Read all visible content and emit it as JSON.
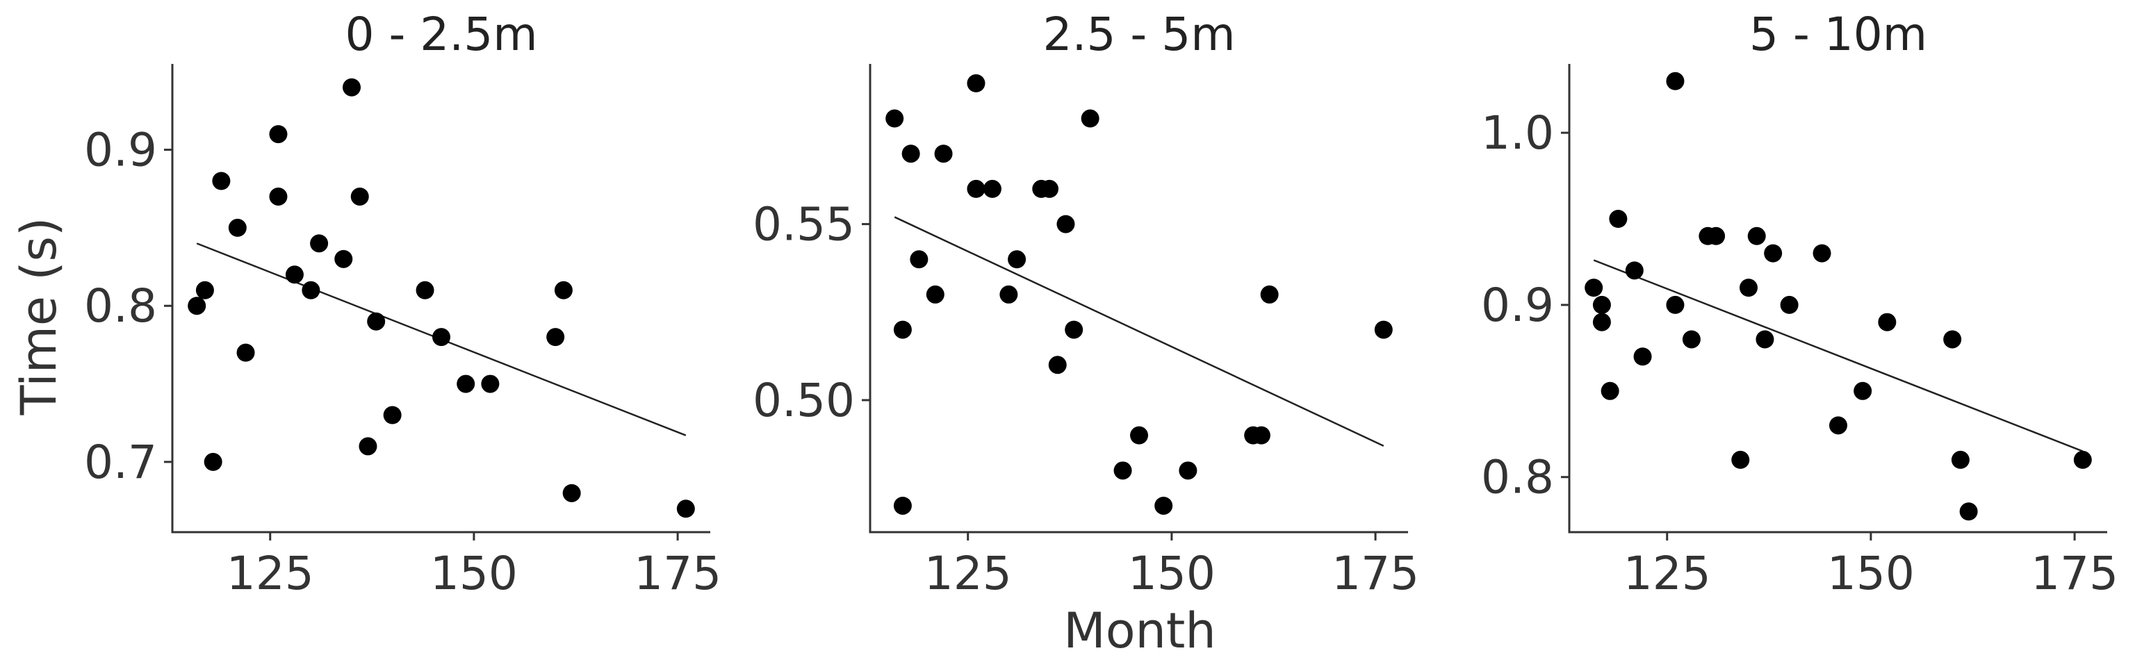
{
  "chart_data": {
    "type": "scatter",
    "xlabel": "Month",
    "ylabel": "Time (s)",
    "panels": [
      {
        "title": "0 - 2.5m",
        "xlim": [
          113,
          179
        ],
        "ylim": [
          0.655,
          0.955
        ],
        "xticks": [
          125,
          150,
          175
        ],
        "xtick_labels": [
          "125",
          "150",
          "175"
        ],
        "yticks": [
          0.7,
          0.8,
          0.9
        ],
        "ytick_labels": [
          "0.7",
          "0.8",
          "0.9"
        ],
        "points": [
          {
            "x": 116,
            "y": 0.8
          },
          {
            "x": 117,
            "y": 0.81
          },
          {
            "x": 118,
            "y": 0.7
          },
          {
            "x": 119,
            "y": 0.88
          },
          {
            "x": 121,
            "y": 0.85
          },
          {
            "x": 122,
            "y": 0.77
          },
          {
            "x": 126,
            "y": 0.91
          },
          {
            "x": 126,
            "y": 0.87
          },
          {
            "x": 128,
            "y": 0.82
          },
          {
            "x": 130,
            "y": 0.81
          },
          {
            "x": 131,
            "y": 0.84
          },
          {
            "x": 134,
            "y": 0.83
          },
          {
            "x": 135,
            "y": 0.94
          },
          {
            "x": 136,
            "y": 0.87
          },
          {
            "x": 137,
            "y": 0.71
          },
          {
            "x": 138,
            "y": 0.79
          },
          {
            "x": 140,
            "y": 0.73
          },
          {
            "x": 144,
            "y": 0.81
          },
          {
            "x": 146,
            "y": 0.78
          },
          {
            "x": 149,
            "y": 0.75
          },
          {
            "x": 152,
            "y": 0.75
          },
          {
            "x": 160,
            "y": 0.78
          },
          {
            "x": 161,
            "y": 0.81
          },
          {
            "x": 162,
            "y": 0.68
          },
          {
            "x": 176,
            "y": 0.67
          }
        ],
        "fit": {
          "x": [
            116,
            176
          ],
          "y": [
            0.84,
            0.717
          ]
        }
      },
      {
        "title": "2.5 - 5m",
        "xlim": [
          113,
          179
        ],
        "ylim": [
          0.4625,
          0.5955
        ],
        "xticks": [
          125,
          150,
          175
        ],
        "xtick_labels": [
          "125",
          "150",
          "175"
        ],
        "yticks": [
          0.5,
          0.55
        ],
        "ytick_labels": [
          "0.50",
          "0.55"
        ],
        "points": [
          {
            "x": 116,
            "y": 0.58
          },
          {
            "x": 117,
            "y": 0.52
          },
          {
            "x": 117,
            "y": 0.47
          },
          {
            "x": 118,
            "y": 0.57
          },
          {
            "x": 119,
            "y": 0.54
          },
          {
            "x": 121,
            "y": 0.53
          },
          {
            "x": 122,
            "y": 0.57
          },
          {
            "x": 126,
            "y": 0.59
          },
          {
            "x": 126,
            "y": 0.56
          },
          {
            "x": 128,
            "y": 0.56
          },
          {
            "x": 130,
            "y": 0.53
          },
          {
            "x": 131,
            "y": 0.54
          },
          {
            "x": 134,
            "y": 0.56
          },
          {
            "x": 135,
            "y": 0.56
          },
          {
            "x": 136,
            "y": 0.51
          },
          {
            "x": 137,
            "y": 0.55
          },
          {
            "x": 138,
            "y": 0.52
          },
          {
            "x": 140,
            "y": 0.58
          },
          {
            "x": 144,
            "y": 0.48
          },
          {
            "x": 146,
            "y": 0.49
          },
          {
            "x": 149,
            "y": 0.47
          },
          {
            "x": 152,
            "y": 0.48
          },
          {
            "x": 160,
            "y": 0.49
          },
          {
            "x": 161,
            "y": 0.49
          },
          {
            "x": 162,
            "y": 0.53
          },
          {
            "x": 176,
            "y": 0.52
          }
        ],
        "fit": {
          "x": [
            116,
            176
          ],
          "y": [
            0.552,
            0.487
          ]
        }
      },
      {
        "title": "5 - 10m",
        "xlim": [
          113,
          179
        ],
        "ylim": [
          0.768,
          1.04
        ],
        "xticks": [
          125,
          150,
          175
        ],
        "xtick_labels": [
          "125",
          "150",
          "175"
        ],
        "yticks": [
          0.8,
          0.9,
          1.0
        ],
        "ytick_labels": [
          "0.8",
          "0.9",
          "1.0"
        ],
        "points": [
          {
            "x": 116,
            "y": 0.91
          },
          {
            "x": 117,
            "y": 0.9
          },
          {
            "x": 117,
            "y": 0.89
          },
          {
            "x": 118,
            "y": 0.85
          },
          {
            "x": 119,
            "y": 0.95
          },
          {
            "x": 121,
            "y": 0.92
          },
          {
            "x": 122,
            "y": 0.87
          },
          {
            "x": 126,
            "y": 1.03
          },
          {
            "x": 126,
            "y": 0.9
          },
          {
            "x": 128,
            "y": 0.88
          },
          {
            "x": 130,
            "y": 0.94
          },
          {
            "x": 131,
            "y": 0.94
          },
          {
            "x": 134,
            "y": 0.81
          },
          {
            "x": 135,
            "y": 0.91
          },
          {
            "x": 136,
            "y": 0.94
          },
          {
            "x": 137,
            "y": 0.88
          },
          {
            "x": 138,
            "y": 0.93
          },
          {
            "x": 140,
            "y": 0.9
          },
          {
            "x": 144,
            "y": 0.93
          },
          {
            "x": 146,
            "y": 0.83
          },
          {
            "x": 149,
            "y": 0.85
          },
          {
            "x": 152,
            "y": 0.89
          },
          {
            "x": 160,
            "y": 0.88
          },
          {
            "x": 161,
            "y": 0.81
          },
          {
            "x": 162,
            "y": 0.78
          },
          {
            "x": 176,
            "y": 0.81
          }
        ],
        "fit": {
          "x": [
            116,
            176
          ],
          "y": [
            0.926,
            0.815
          ]
        }
      }
    ]
  }
}
